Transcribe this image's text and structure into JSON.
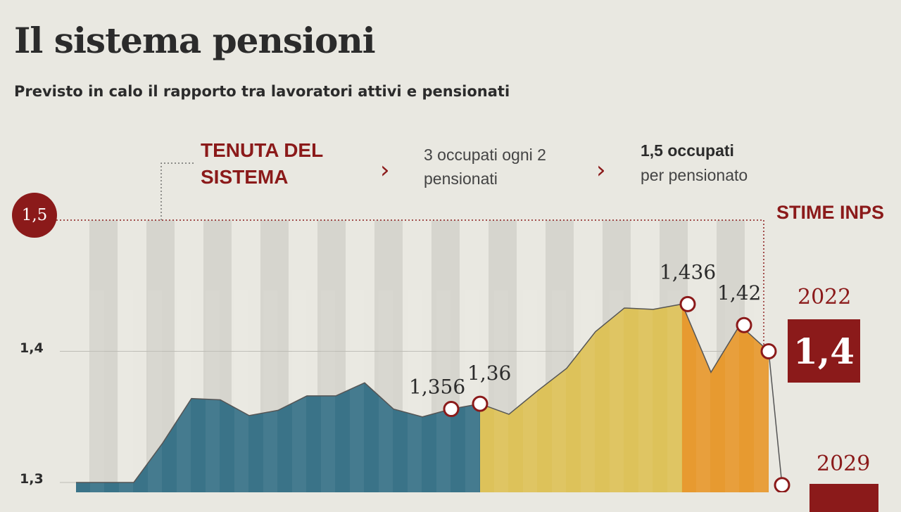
{
  "header": {
    "title": "Il sistema pensioni",
    "subtitle": "Previsto in calo il rapporto tra lavoratori attivi e pensionati"
  },
  "legend": {
    "tenuta": "TENUTA DEL SISTEMA",
    "info1": "3 occupati ogni 2 pensionati",
    "info2_bold": "1,5 occupati",
    "info2_rest": "per pensionato",
    "stime": "STIME INPS",
    "threshold_badge": "1,5"
  },
  "forecast": {
    "year_a": "2022",
    "value_a": "1,4",
    "year_b": "2029"
  },
  "colors": {
    "background": "#e9e8e1",
    "accent": "#8b1a1a",
    "blue": "#3a7388",
    "yellow": "#ddc25a",
    "orange": "#e79a30",
    "stripe": "#d6d5ce"
  },
  "chart_data": {
    "type": "area",
    "ylim": [
      1.3,
      1.5
    ],
    "yticks": [
      {
        "value": 1.4,
        "label": "1,4"
      },
      {
        "value": 1.3,
        "label": "1,3"
      }
    ],
    "threshold": 1.5,
    "series": [
      {
        "values": [
          1.3,
          1.3,
          1.3,
          1.33,
          1.364,
          1.363,
          1.351,
          1.355,
          1.366,
          1.366,
          1.376,
          1.356,
          1.35,
          1.356,
          1.36
        ]
      },
      {
        "values": [
          1.36,
          1.352,
          1.37,
          1.387,
          1.415,
          1.433,
          1.432,
          1.436
        ]
      },
      {
        "values": [
          1.436,
          1.384,
          1.42,
          1.4
        ]
      }
    ],
    "forecast_line": [
      1.4,
      1.298
    ],
    "points": [
      {
        "value": 1.356,
        "label": "1,356"
      },
      {
        "value": 1.36,
        "label": "1,36"
      },
      {
        "value": 1.436,
        "label": "1,436"
      },
      {
        "value": 1.42,
        "label": "1,42"
      },
      {
        "value": 1.4,
        "label": ""
      },
      {
        "value": 1.298,
        "label": ""
      }
    ]
  }
}
